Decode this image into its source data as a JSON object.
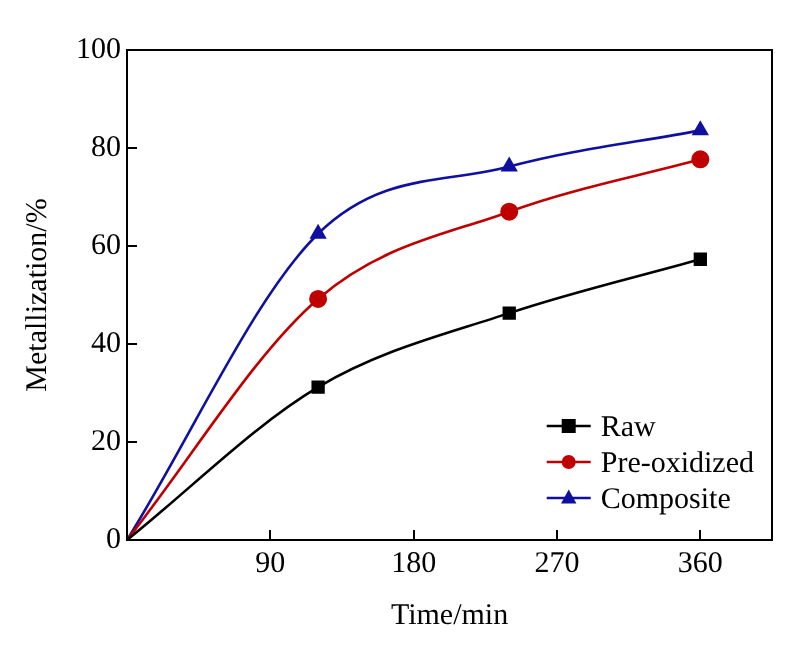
{
  "chart_data": {
    "type": "line",
    "xlabel": "Time/min",
    "ylabel": "Metallization/%",
    "xlim": [
      0,
      405
    ],
    "xticks": [
      90,
      180,
      270,
      360
    ],
    "ylim": [
      0,
      100
    ],
    "yticks": [
      0,
      20,
      40,
      60,
      80,
      100
    ],
    "grid": false,
    "legend": "bottom right",
    "series": [
      {
        "name": "Raw",
        "color": "#000000",
        "marker": "square",
        "x": [
          0,
          120,
          240,
          360
        ],
        "values": [
          0,
          31.2,
          46.3,
          57.3
        ]
      },
      {
        "name": "Pre-oxidized",
        "color": "#c00000",
        "marker": "circle",
        "x": [
          0,
          120,
          240,
          360
        ],
        "values": [
          0,
          49.2,
          67,
          77.7
        ]
      },
      {
        "name": "Composite",
        "color": "#1010a0",
        "marker": "triangle",
        "x": [
          0,
          120,
          240,
          360
        ],
        "values": [
          0,
          62.5,
          76.2,
          83.6
        ]
      }
    ]
  }
}
